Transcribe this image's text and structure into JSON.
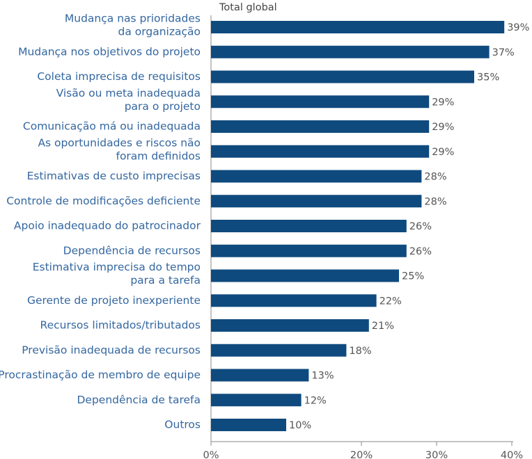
{
  "chart_data": {
    "type": "hbar",
    "categories": [
      "Mudança nas prioridades\nda organização",
      "Mudança nos objetivos do projeto",
      "Coleta imprecisa de requisitos",
      "Visão ou meta inadequada\npara o projeto",
      "Comunicação má ou inadequada",
      "As oportunidades e riscos não\nforam definidos",
      "Estimativas de custo imprecisas",
      "Controle de modificações deficiente",
      "Apoio inadequado do patrocinador",
      "Dependência de recursos",
      "Estimativa imprecisa do tempo\npara a tarefa",
      "Gerente de projeto inexperiente",
      "Recursos limitados/tributados",
      "Previsão inadequada de recursos",
      "Procrastinação de membro de equipe",
      "Dependência de tarefa",
      "Outros"
    ],
    "series": [
      {
        "name": "Total global",
        "color": "#0f4a7e",
        "values": [
          39,
          37,
          35,
          29,
          29,
          29,
          28,
          28,
          26,
          26,
          25,
          22,
          21,
          18,
          13,
          12,
          10
        ],
        "value_labels": [
          "39%",
          "37%",
          "35%",
          "29%",
          "29%",
          "29%",
          "28%",
          "28%",
          "26%",
          "26%",
          "25%",
          "22%",
          "21%",
          "18%",
          "13%",
          "12%",
          "10%"
        ]
      }
    ],
    "xlim": [
      0,
      40
    ],
    "xticks": [
      {
        "value": 0,
        "label": "0%"
      },
      {
        "value": 20,
        "label": "20%"
      },
      {
        "value": 30,
        "label": "30%"
      },
      {
        "value": 40,
        "label": "40%"
      }
    ]
  }
}
